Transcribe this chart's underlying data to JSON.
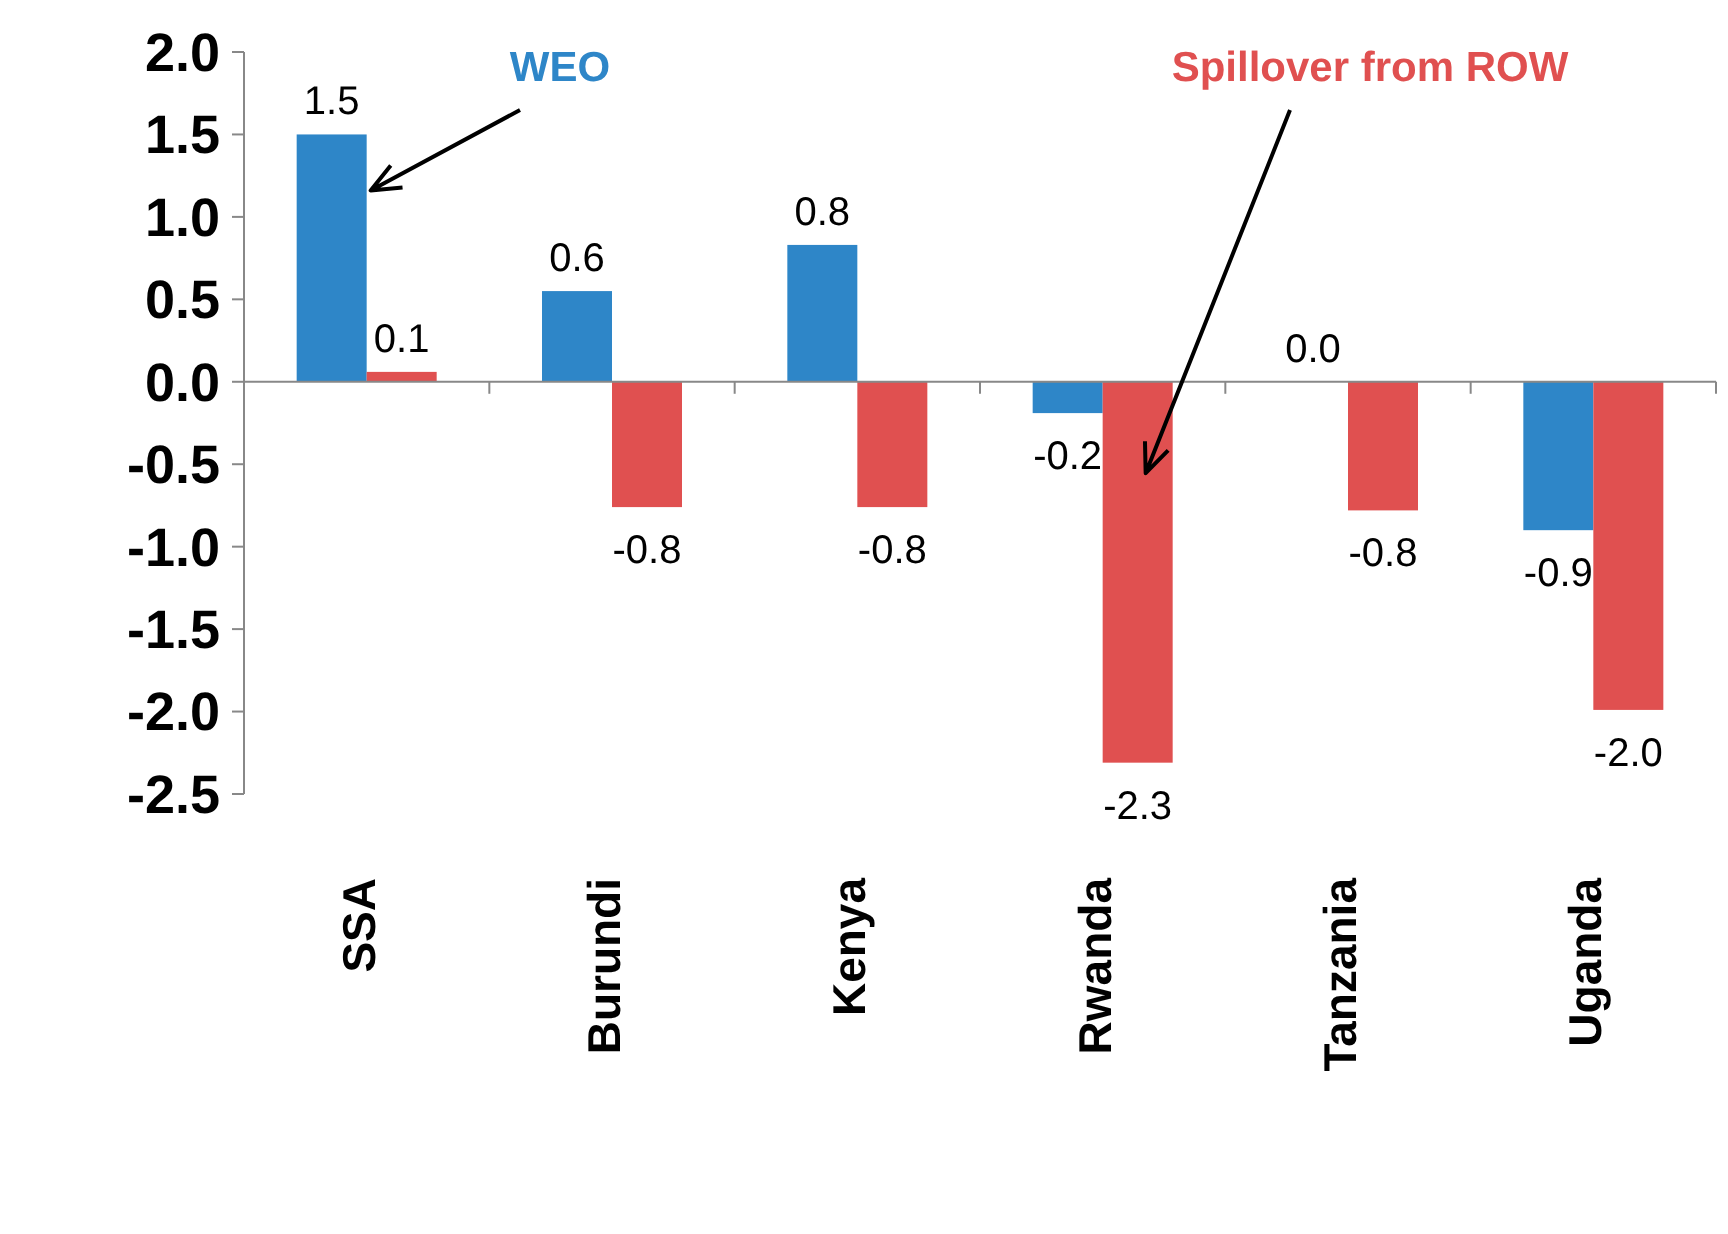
{
  "chart_data": {
    "type": "bar",
    "categories": [
      "SSA",
      "Burundi",
      "Kenya",
      "Rwanda",
      "Tanzania",
      "Uganda"
    ],
    "series": [
      {
        "name": "WEO",
        "color": "#2e86c8",
        "values": [
          1.5,
          0.55,
          0.83,
          -0.19,
          0.0,
          -0.9
        ],
        "value_labels": [
          "1.5",
          "0.6",
          "0.8",
          "-0.2",
          "0.0",
          "-0.9"
        ]
      },
      {
        "name": "Spillover from ROW",
        "color": "#e05050",
        "values": [
          0.06,
          -0.76,
          -0.76,
          -2.31,
          -0.78,
          -1.99
        ],
        "value_labels": [
          "0.1",
          "-0.8",
          "-0.8",
          "-2.3",
          "-0.8",
          "-2.0"
        ]
      }
    ],
    "ylim": [
      -2.5,
      2.0
    ],
    "yticks": [
      {
        "value": -2.5,
        "label": "-2.5"
      },
      {
        "value": -2.0,
        "label": "-2.0"
      },
      {
        "value": -1.5,
        "label": "-1.5"
      },
      {
        "value": -1.0,
        "label": "-1.0"
      },
      {
        "value": -0.5,
        "label": "-0.5"
      },
      {
        "value": 0.0,
        "label": "0.0"
      },
      {
        "value": 0.5,
        "label": "0.5"
      },
      {
        "value": 1.0,
        "label": "1.0"
      },
      {
        "value": 1.5,
        "label": "1.5"
      },
      {
        "value": 2.0,
        "label": "2.0"
      }
    ],
    "legend": false
  }
}
